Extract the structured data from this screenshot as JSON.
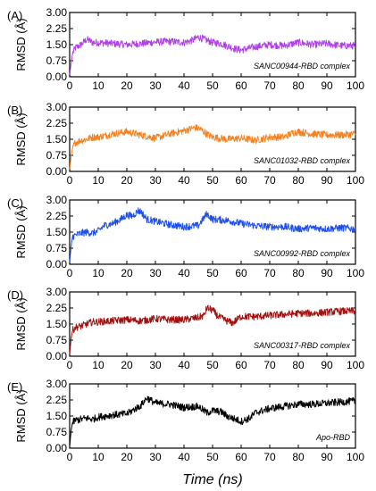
{
  "chart_data": {
    "type": "line",
    "x_label": "Time (ns)",
    "x_range": [
      0,
      100
    ],
    "x_ticks": [
      0,
      10,
      20,
      30,
      40,
      50,
      60,
      70,
      80,
      90,
      100
    ],
    "panels": [
      {
        "label": "(A)",
        "annotation": "SANC00944-RBD complex",
        "ylabel": "RMSD (Å)",
        "ylim": [
          0.0,
          3.0
        ],
        "yticks": [
          "0.00",
          "0.75",
          "1.50",
          "2.25",
          "3.00"
        ],
        "color": "#b040e8",
        "x": [
          0,
          0.5,
          1,
          2,
          4,
          6,
          8,
          10,
          15,
          20,
          25,
          30,
          35,
          40,
          43,
          45,
          48,
          50,
          53,
          55,
          58,
          60,
          65,
          70,
          75,
          80,
          85,
          90,
          95,
          100
        ],
        "y": [
          0.1,
          0.6,
          1.1,
          1.35,
          1.5,
          1.75,
          1.6,
          1.6,
          1.55,
          1.5,
          1.55,
          1.62,
          1.65,
          1.6,
          1.7,
          1.85,
          1.7,
          1.6,
          1.55,
          1.45,
          1.3,
          1.25,
          1.4,
          1.5,
          1.45,
          1.6,
          1.5,
          1.55,
          1.45,
          1.45
        ]
      },
      {
        "label": "(B)",
        "annotation": "SANC01032-RBD complex",
        "ylabel": "RMSD (Å)",
        "ylim": [
          0.0,
          3.0
        ],
        "yticks": [
          "0.00",
          "0.75",
          "1.50",
          "2.25",
          "3.00"
        ],
        "color": "#f5821f",
        "x": [
          0,
          0.5,
          1,
          2,
          4,
          6,
          8,
          10,
          15,
          20,
          25,
          30,
          35,
          40,
          44,
          46,
          48,
          50,
          55,
          60,
          65,
          70,
          75,
          78,
          80,
          85,
          90,
          95,
          100
        ],
        "y": [
          0.1,
          0.7,
          1.1,
          1.35,
          1.45,
          1.5,
          1.6,
          1.6,
          1.75,
          1.85,
          1.7,
          1.55,
          1.75,
          1.9,
          2.05,
          1.95,
          1.75,
          1.6,
          1.5,
          1.55,
          1.45,
          1.6,
          1.6,
          1.8,
          1.85,
          1.75,
          1.7,
          1.7,
          1.75
        ]
      },
      {
        "label": "(C)",
        "annotation": "SANC00992-RBD complex",
        "ylabel": "RMSD (Å)",
        "ylim": [
          0.0,
          3.0
        ],
        "yticks": [
          "0.00",
          "0.75",
          "1.50",
          "2.25",
          "3.00"
        ],
        "color": "#1f4fe6",
        "x": [
          0,
          0.5,
          1,
          2,
          4,
          6,
          8,
          10,
          12,
          15,
          18,
          20,
          22,
          24,
          25,
          27,
          30,
          35,
          40,
          45,
          48,
          50,
          55,
          60,
          65,
          70,
          75,
          80,
          85,
          90,
          95,
          100
        ],
        "y": [
          0.1,
          0.8,
          1.3,
          1.35,
          1.45,
          1.5,
          1.45,
          1.55,
          1.8,
          1.9,
          2.1,
          2.3,
          2.25,
          2.5,
          2.45,
          2.1,
          2.0,
          1.85,
          1.75,
          1.8,
          2.35,
          2.1,
          2.05,
          1.9,
          1.8,
          1.75,
          1.75,
          1.65,
          1.7,
          1.65,
          1.7,
          1.65
        ]
      },
      {
        "label": "(D)",
        "annotation": "SANC00317-RBD complex",
        "ylabel": "RMSD (Å)",
        "ylim": [
          0.0,
          3.0
        ],
        "yticks": [
          "0.00",
          "0.75",
          "1.50",
          "2.25",
          "3.00"
        ],
        "color": "#a31010",
        "x": [
          0,
          0.5,
          1,
          2,
          4,
          6,
          8,
          10,
          15,
          20,
          25,
          30,
          35,
          40,
          45,
          47,
          48,
          50,
          52,
          55,
          57,
          60,
          65,
          70,
          75,
          80,
          85,
          90,
          95,
          100
        ],
        "y": [
          0.1,
          0.8,
          1.2,
          1.35,
          1.4,
          1.5,
          1.6,
          1.6,
          1.65,
          1.7,
          1.65,
          1.75,
          1.7,
          1.7,
          1.8,
          1.9,
          2.25,
          2.15,
          1.85,
          1.65,
          1.55,
          1.85,
          1.85,
          1.9,
          1.95,
          2.0,
          2.0,
          2.05,
          2.1,
          2.1
        ]
      },
      {
        "label": "(E)",
        "annotation": "Apo-RBD",
        "ylabel": "RMSD (Å)",
        "ylim": [
          0.0,
          3.0
        ],
        "yticks": [
          "0.00",
          "0.75",
          "1.50",
          "2.25",
          "3.00"
        ],
        "color": "#000000",
        "x": [
          0,
          0.5,
          1,
          2,
          4,
          6,
          8,
          10,
          15,
          20,
          25,
          27,
          30,
          35,
          40,
          45,
          48,
          50,
          53,
          55,
          58,
          60,
          63,
          65,
          70,
          75,
          80,
          85,
          90,
          95,
          100
        ],
        "y": [
          0.1,
          0.8,
          1.2,
          1.3,
          1.35,
          1.4,
          1.35,
          1.45,
          1.55,
          1.6,
          2.0,
          2.35,
          2.1,
          2.05,
          1.9,
          1.95,
          1.65,
          1.75,
          1.7,
          1.5,
          1.35,
          1.25,
          1.4,
          1.65,
          1.85,
          1.95,
          2.05,
          2.05,
          2.1,
          2.15,
          2.2
        ]
      }
    ]
  }
}
